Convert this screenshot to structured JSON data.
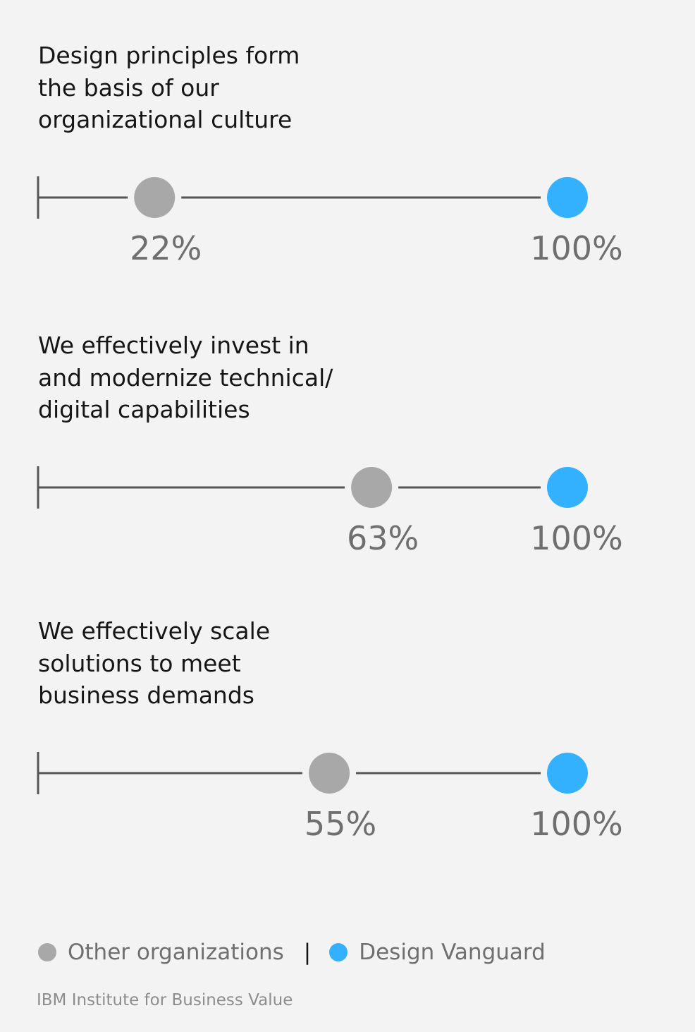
{
  "chart_data": {
    "type": "dumbbell",
    "unit": "%",
    "xlim": [
      0,
      100
    ],
    "series": [
      {
        "name": "Other organizations",
        "color": "#a8a8a8",
        "values": [
          22,
          63,
          55
        ]
      },
      {
        "name": "Design Vanguard",
        "color": "#33b1ff",
        "values": [
          100,
          100,
          100
        ]
      }
    ],
    "categories": [
      "Design principles form\nthe basis of our\norganizational culture",
      "We effectively invest in\nand modernize technical/\ndigital capabilities",
      "We effectively scale\nsolutions to meet\nbusiness demands"
    ],
    "labels": {
      "other": [
        "22%",
        "63%",
        "55%"
      ],
      "vanguard": [
        "100%",
        "100%",
        "100%"
      ]
    }
  },
  "legend": {
    "other_label": "Other organizations",
    "separator": "|",
    "vanguard_label": "Design Vanguard",
    "other_color": "#a8a8a8",
    "vanguard_color": "#33b1ff"
  },
  "source": "IBM Institute for Business Value"
}
